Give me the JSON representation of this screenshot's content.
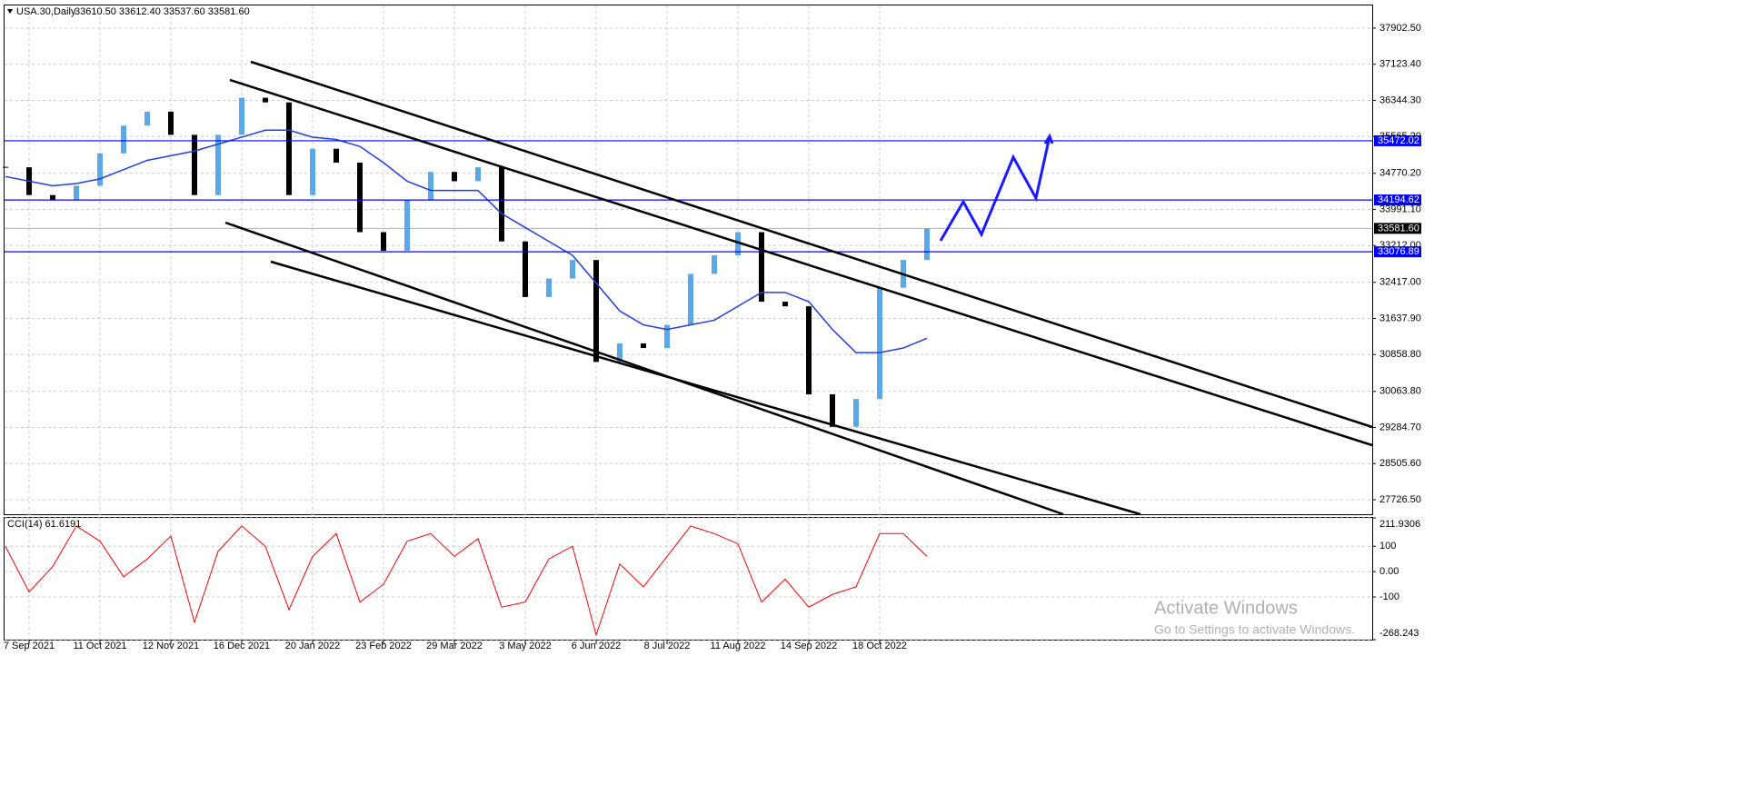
{
  "chart_data": [
    {
      "type": "candlestick",
      "title": "USA.30,Daily",
      "subtitle": "33610.50 33612.40 33537.60 33581.60",
      "categories": [
        null,
        "7 Sep 2021",
        null,
        null,
        "11 Oct 2021",
        null,
        null,
        "12 Nov 2021",
        null,
        null,
        "16 Dec 2021",
        null,
        null,
        "20 Jan 2022",
        null,
        null,
        "23 Feb 2022",
        null,
        null,
        "29 Mar 2022",
        null,
        null,
        "3 May 2022",
        null,
        null,
        "6 Jun 2022",
        null,
        null,
        "8 Jul 2022",
        null,
        null,
        "11 Aug 2022",
        null,
        null,
        "14 Sep 2022",
        null,
        null,
        "18 Oct 2022",
        null,
        null
      ],
      "values": [
        34900,
        34300,
        34200,
        34500,
        35200,
        35800,
        36100,
        35600,
        34300,
        35600,
        36400,
        36300,
        34300,
        35300,
        35000,
        33500,
        33100,
        34200,
        34800,
        34600,
        34900,
        33300,
        32100,
        32500,
        32900,
        30700,
        31100,
        31000,
        31500,
        32600,
        33000,
        33500,
        32000,
        31900,
        30000,
        29300,
        29900,
        32300,
        32900,
        33581.6
      ],
      "up_color": "#5aa9e6",
      "down_color": "#000000",
      "ma_values": [
        34700,
        34600,
        34500,
        34550,
        34650,
        34850,
        35050,
        35150,
        35250,
        35400,
        35550,
        35700,
        35700,
        35550,
        35500,
        35350,
        35000,
        34600,
        34400,
        34400,
        34400,
        33900,
        33600,
        33300,
        33000,
        32400,
        31800,
        31500,
        31400,
        31500,
        31600,
        31900,
        32200,
        32200,
        32000,
        31400,
        30900,
        30900,
        31000,
        31210
      ],
      "ma_color": "#1f3fe0",
      "ylim": [
        27413,
        38392
      ],
      "yticks": [
        {
          "value": 37902.5,
          "label": "37902.50"
        },
        {
          "value": 37123.4,
          "label": "37123.40"
        },
        {
          "value": 36344.3,
          "label": "36344.30"
        },
        {
          "value": 35565.2,
          "label": "35565.20"
        },
        {
          "value": 34770.2,
          "label": "34770.20"
        },
        {
          "value": 33991.1,
          "label": "33991.10"
        },
        {
          "value": 33212,
          "label": "33212.00"
        },
        {
          "value": 32417,
          "label": "32417.00"
        },
        {
          "value": 31637.9,
          "label": "31637.90"
        },
        {
          "value": 30858.8,
          "label": "30858.80"
        },
        {
          "value": 30063.8,
          "label": "30063.80"
        },
        {
          "value": 29284.7,
          "label": "29284.70"
        },
        {
          "value": 28505.6,
          "label": "28505.60"
        },
        {
          "value": 27726.5,
          "label": "27726.50"
        }
      ],
      "levels": [
        {
          "value": 35472.02,
          "label": "35472.02"
        },
        {
          "value": 34194.62,
          "label": "34194.62"
        },
        {
          "value": 33076.89,
          "label": "33076.89"
        }
      ],
      "level_color": "#0000ff",
      "current": {
        "value": 33581.6,
        "label": "33581.60"
      },
      "grid": true
    },
    {
      "type": "line",
      "title": "CCI(14) 61.6191",
      "color": "#ff0000",
      "values": [
        100,
        -80,
        20,
        180,
        120,
        -20,
        50,
        140,
        -200,
        80,
        180,
        100,
        -150,
        60,
        150,
        -120,
        -50,
        120,
        150,
        60,
        130,
        -140,
        -120,
        50,
        100,
        -250,
        30,
        -60,
        60,
        180,
        150,
        110,
        -120,
        -30,
        -140,
        -90,
        -60,
        150,
        150,
        60
      ],
      "ylim": [
        -268.243,
        211.9306
      ],
      "yticks": [
        211.9306,
        100,
        {
          "value": 0,
          "label": "0.00"
        },
        -100,
        -268.243
      ],
      "grid": true
    }
  ],
  "watermark": {
    "line1": "Activate Windows",
    "line2": "Go to Settings to activate Windows."
  }
}
